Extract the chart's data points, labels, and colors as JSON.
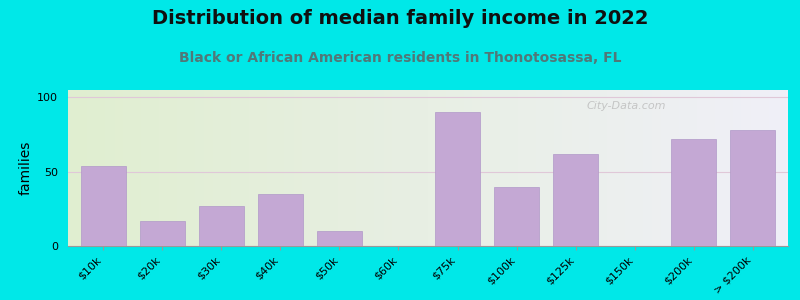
{
  "title": "Distribution of median family income in 2022",
  "subtitle": "Black or African American residents in Thonotosassa, FL",
  "ylabel": "families",
  "categories": [
    "$10k",
    "$20k",
    "$30k",
    "$40k",
    "$50k",
    "$60k",
    "$75k",
    "$100k",
    "$125k",
    "$150k",
    "$200k",
    "> $200k"
  ],
  "values": [
    54,
    17,
    27,
    35,
    10,
    0,
    90,
    40,
    62,
    0,
    72,
    78
  ],
  "bar_color": "#c4a8d4",
  "bar_edgecolor": "#b098c8",
  "background_outer": "#00e8e8",
  "background_inner_color_left": "#e0eed0",
  "background_inner_color_right": "#f0f0f8",
  "grid_color": "#e0c8d8",
  "yticks": [
    0,
    50,
    100
  ],
  "ylim": [
    0,
    105
  ],
  "title_fontsize": 14,
  "subtitle_fontsize": 10,
  "ylabel_fontsize": 10,
  "tick_fontsize": 8,
  "watermark": "City-Data.com",
  "subtitle_color": "#507878",
  "title_color": "#101010"
}
